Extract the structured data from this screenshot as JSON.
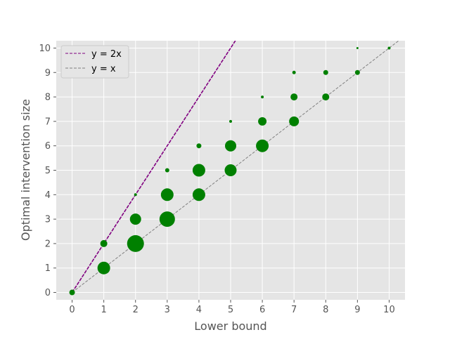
{
  "chart_data": {
    "type": "scatter",
    "xlabel": "Lower bound",
    "ylabel": "Optimal intervention size",
    "xlim": [
      -0.5,
      10.5
    ],
    "ylim": [
      -0.3,
      10.3
    ],
    "xticks": [
      "0",
      "1",
      "2",
      "3",
      "4",
      "5",
      "6",
      "7",
      "8",
      "9",
      "10"
    ],
    "yticks": [
      "0",
      "1",
      "2",
      "3",
      "4",
      "5",
      "6",
      "7",
      "8",
      "9",
      "10"
    ],
    "grid": true,
    "legend_position": "top-left",
    "colors": {
      "background": "#e5e5e5",
      "grid": "#ffffff",
      "points": "#008000",
      "line_2x": "#800080",
      "line_x": "#808080"
    },
    "lines": [
      {
        "name": "y = 2x",
        "slope": 2,
        "style": "dashed",
        "color": "#800080"
      },
      {
        "name": "y = x",
        "slope": 1,
        "style": "dashed",
        "color": "#808080"
      }
    ],
    "points": [
      {
        "x": 0,
        "y": 0,
        "size": 4
      },
      {
        "x": 1,
        "y": 1,
        "size": 9
      },
      {
        "x": 1,
        "y": 2,
        "size": 5
      },
      {
        "x": 2,
        "y": 2,
        "size": 12
      },
      {
        "x": 2,
        "y": 3,
        "size": 8
      },
      {
        "x": 2,
        "y": 4,
        "size": 2
      },
      {
        "x": 3,
        "y": 3,
        "size": 11
      },
      {
        "x": 3,
        "y": 4,
        "size": 9
      },
      {
        "x": 3,
        "y": 5,
        "size": 3
      },
      {
        "x": 4,
        "y": 4,
        "size": 9
      },
      {
        "x": 4,
        "y": 5,
        "size": 9
      },
      {
        "x": 4,
        "y": 6,
        "size": 3.5
      },
      {
        "x": 5,
        "y": 5,
        "size": 8.5
      },
      {
        "x": 5,
        "y": 6,
        "size": 8
      },
      {
        "x": 5,
        "y": 7,
        "size": 2
      },
      {
        "x": 6,
        "y": 6,
        "size": 9
      },
      {
        "x": 6,
        "y": 7,
        "size": 6
      },
      {
        "x": 6,
        "y": 8,
        "size": 2
      },
      {
        "x": 7,
        "y": 7,
        "size": 7
      },
      {
        "x": 7,
        "y": 8,
        "size": 5
      },
      {
        "x": 7,
        "y": 9,
        "size": 2.5
      },
      {
        "x": 8,
        "y": 8,
        "size": 5
      },
      {
        "x": 8,
        "y": 9,
        "size": 3.5
      },
      {
        "x": 9,
        "y": 9,
        "size": 3.5
      },
      {
        "x": 9,
        "y": 10,
        "size": 1.5
      },
      {
        "x": 10,
        "y": 10,
        "size": 2
      }
    ]
  }
}
